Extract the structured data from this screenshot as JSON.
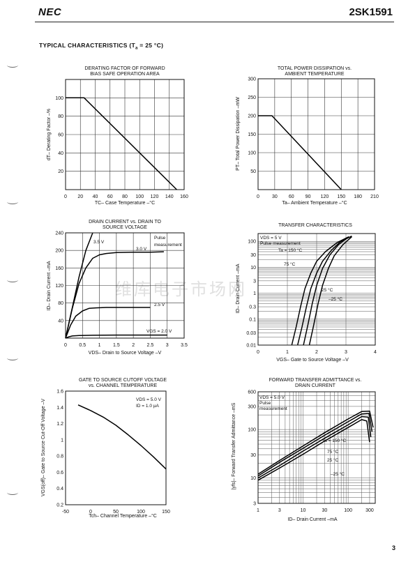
{
  "header": {
    "brand": "NEC",
    "part_number": "2SK1591"
  },
  "section_title": {
    "prefix": "TYPICAL CHARACTERISTICS (T",
    "subscript": "a",
    "suffix": " = 25 °C)"
  },
  "watermark": "维库电子市场网",
  "page_number": "3",
  "chart_data": [
    {
      "id": "derating",
      "type": "line",
      "title": [
        "DERATING FACTOR OF FORWARD",
        "BIAS SAFE OPERATION AREA"
      ],
      "xlabel": "TC– Case Temperature –°C",
      "ylabel": "dT– Derating Factor –%",
      "xlim": [
        0,
        160
      ],
      "ylim": [
        0,
        120
      ],
      "xticks": [
        0,
        20,
        40,
        60,
        80,
        100,
        120,
        140,
        160
      ],
      "yticks": [
        20,
        40,
        60,
        80,
        100
      ],
      "grid": true,
      "series": [
        {
          "x": [
            0,
            25,
            150
          ],
          "y": [
            100,
            100,
            0
          ]
        }
      ]
    },
    {
      "id": "power",
      "type": "line",
      "title": [
        "TOTAL POWER DISSIPATION vs.",
        "AMBIENT TEMPERATURE"
      ],
      "xlabel": "Ta– Ambient Temperature –°C",
      "ylabel": "PT– Total Power Dissipation –mW",
      "xlim": [
        0,
        210
      ],
      "ylim": [
        0,
        300
      ],
      "xticks": [
        0,
        30,
        60,
        90,
        120,
        150,
        180,
        210
      ],
      "yticks": [
        50,
        100,
        150,
        200,
        250,
        300
      ],
      "grid": true,
      "series": [
        {
          "x": [
            0,
            25,
            150
          ],
          "y": [
            200,
            200,
            0
          ]
        }
      ]
    },
    {
      "id": "drain",
      "type": "line",
      "title": [
        "DRAIN CURRENT vs. DRAIN TO",
        "SOURCE VOLTAGE"
      ],
      "xlabel": "VDS– Drain to Source Voltage –V",
      "ylabel": "ID– Drain Current –mA",
      "xlim": [
        0,
        3.5
      ],
      "ylim": [
        0,
        240
      ],
      "xticks": [
        0,
        0.5,
        1.0,
        1.5,
        2.0,
        2.5,
        3.0,
        3.5
      ],
      "yticks": [
        40,
        80,
        120,
        160,
        200,
        240
      ],
      "grid": true,
      "annotations": [
        "Pulse",
        "measurement"
      ],
      "series": [
        {
          "name": "3.5 V",
          "x": [
            0,
            0.2,
            0.4,
            0.6,
            0.8
          ],
          "y": [
            0,
            70,
            140,
            200,
            240
          ]
        },
        {
          "name": "3.0 V",
          "x": [
            0,
            0.2,
            0.4,
            0.6,
            0.8,
            1.0,
            1.2,
            1.5,
            2.0,
            2.5,
            2.9
          ],
          "y": [
            0,
            68,
            125,
            160,
            182,
            190,
            193,
            195,
            196,
            196,
            197
          ]
        },
        {
          "name": "2.5 V",
          "x": [
            0,
            0.15,
            0.3,
            0.5,
            0.7,
            0.9,
            1.2,
            1.6,
            2.0,
            2.5
          ],
          "y": [
            0,
            30,
            50,
            62,
            68,
            69,
            70,
            70,
            70,
            70
          ]
        },
        {
          "name": "VGS = 2.0 V",
          "x": [
            0,
            0.1,
            0.2,
            0.4,
            0.8,
            1.5,
            2.0,
            2.5,
            3.0
          ],
          "y": [
            0,
            3,
            5,
            6,
            6.5,
            7,
            7,
            7,
            7
          ]
        }
      ]
    },
    {
      "id": "transfer",
      "type": "line",
      "title": [
        "TRANSFER CHARACTERISTICS"
      ],
      "xlabel": "VGS– Gate to Source Voltage –V",
      "ylabel": "ID– Drain Current –mA",
      "xlim": [
        0,
        4.0
      ],
      "ylim": [
        0.01,
        200
      ],
      "yscale": "log",
      "xticks": [
        0,
        1.0,
        2.0,
        3.0,
        4.0
      ],
      "yticks": [
        0.01,
        0.03,
        0.1,
        0.3,
        1,
        3,
        10,
        30,
        100
      ],
      "grid": true,
      "annotations": [
        "VDS = 5 V",
        "Pulse measurement"
      ],
      "series": [
        {
          "name": "Ta = 150 °C",
          "x": [
            1.15,
            1.3,
            1.45,
            1.6,
            1.8,
            2.0,
            2.3,
            2.7,
            3.1
          ],
          "y": [
            0.01,
            0.05,
            0.3,
            1.5,
            6,
            17,
            40,
            90,
            150
          ]
        },
        {
          "name": "75 °C",
          "x": [
            1.35,
            1.5,
            1.65,
            1.8,
            2.0,
            2.2,
            2.5,
            2.8,
            3.2
          ],
          "y": [
            0.01,
            0.05,
            0.3,
            1.5,
            6,
            17,
            45,
            95,
            160
          ]
        },
        {
          "name": "25 °C",
          "x": [
            1.55,
            1.7,
            1.85,
            2.0,
            2.2,
            2.45,
            2.75,
            3.1
          ],
          "y": [
            0.01,
            0.06,
            0.4,
            2,
            9,
            30,
            75,
            150
          ]
        },
        {
          "name": "–25 °C",
          "x": [
            1.75,
            1.9,
            2.05,
            2.2,
            2.4,
            2.6,
            2.9,
            3.2
          ],
          "y": [
            0.01,
            0.06,
            0.4,
            2,
            9,
            28,
            75,
            150
          ]
        }
      ]
    },
    {
      "id": "cutoff",
      "type": "line",
      "title": [
        "GATE TO SOURCE CUTOFF VOLTAGE",
        "vs. CHANNEL TEMPERATURE"
      ],
      "xlabel": "Tch– Channel Temperature –°C",
      "ylabel": "VGS(off)– Gate to Source Cut-Off Voltage –V",
      "xlim": [
        -50,
        150
      ],
      "ylim": [
        0.2,
        1.6
      ],
      "xticks": [
        -50,
        0,
        50,
        100,
        150
      ],
      "yticks": [
        0.2,
        0.4,
        0.6,
        0.8,
        1.0,
        1.2,
        1.4,
        1.6
      ],
      "grid": false,
      "annotations": [
        "VDS = 5.0 V",
        "ID = 1.0 µA"
      ],
      "series": [
        {
          "x": [
            -25,
            0,
            25,
            50,
            75,
            100,
            125,
            150
          ],
          "y": [
            1.43,
            1.36,
            1.28,
            1.18,
            1.06,
            0.93,
            0.79,
            0.64
          ]
        }
      ]
    },
    {
      "id": "admittance",
      "type": "line",
      "title": [
        "FORWARD TRANSFER ADMITTANCE vs.",
        "DRAIN CURRENT"
      ],
      "xlabel": "ID– Drain Current –mA",
      "ylabel": "|yfs|– Forward Transfer Admittance –mS",
      "xlim": [
        1,
        400
      ],
      "ylim": [
        3,
        600
      ],
      "xscale": "log",
      "yscale": "log",
      "xticks": [
        1,
        3,
        10,
        30,
        100,
        300
      ],
      "yticks": [
        3,
        10,
        30,
        100,
        300,
        600
      ],
      "grid": true,
      "annotations": [
        "VDS = 5.0 V",
        "Pulse",
        "measurement"
      ],
      "series": [
        {
          "name": "Ta = 150 °C",
          "x": [
            1,
            3,
            10,
            30,
            100,
            200,
            260,
            300
          ],
          "y": [
            9,
            16,
            31,
            58,
            110,
            160,
            150,
            55
          ]
        },
        {
          "name": "75 °C",
          "x": [
            1,
            3,
            10,
            30,
            100,
            200,
            280,
            320
          ],
          "y": [
            10,
            18,
            36,
            66,
            125,
            185,
            180,
            70
          ]
        },
        {
          "name": "25 °C",
          "x": [
            1,
            3,
            10,
            30,
            100,
            200,
            290,
            340
          ],
          "y": [
            11,
            21,
            41,
            76,
            145,
            210,
            215,
            90
          ]
        },
        {
          "name": "–25 °C",
          "x": [
            1,
            3,
            10,
            30,
            100,
            200,
            300,
            360
          ],
          "y": [
            12,
            23,
            46,
            86,
            165,
            235,
            240,
            110
          ]
        }
      ]
    }
  ]
}
